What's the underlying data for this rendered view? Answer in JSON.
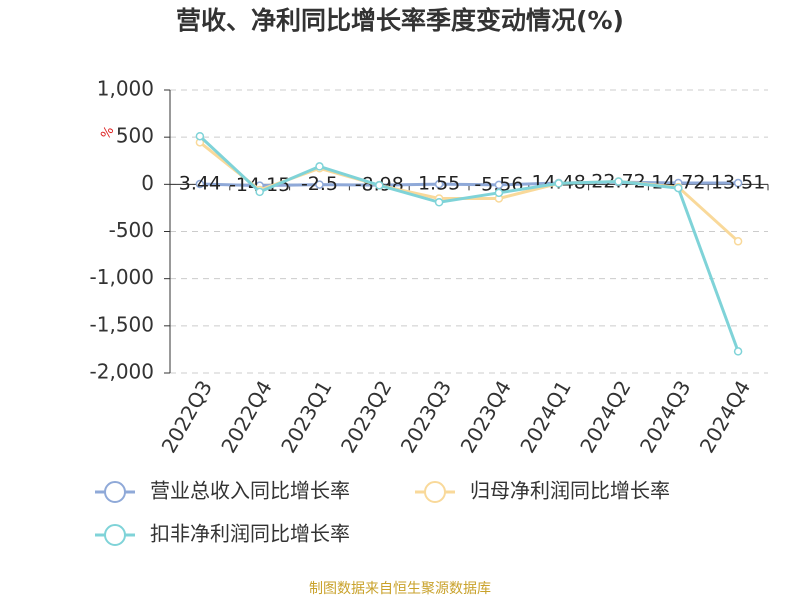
{
  "chart_data": {
    "type": "line",
    "title": "营收、净利同比增长率季度变动情况(%)",
    "y_label": "%",
    "source": "制图数据来自恒生聚源数据库",
    "categories": [
      "2022Q3",
      "2022Q4",
      "2023Q1",
      "2023Q2",
      "2023Q3",
      "2023Q4",
      "2024Q1",
      "2024Q2",
      "2024Q3",
      "2024Q4"
    ],
    "series": [
      {
        "name": "营业总收入同比增长率",
        "color": "#8fa9d8",
        "show_labels": true,
        "values": [
          3.44,
          -14.15,
          -2.5,
          -8.98,
          1.55,
          -5.56,
          14.48,
          22.72,
          14.72,
          13.51
        ]
      },
      {
        "name": "归母净利润同比增长率",
        "color": "#f9d99a",
        "values": [
          445,
          -60,
          170,
          -10,
          -150,
          -150,
          10,
          30,
          -30,
          -604
        ]
      },
      {
        "name": "扣非净利润同比增长率",
        "color": "#7fd3d8",
        "values": [
          510,
          -80,
          190,
          -10,
          -190,
          -90,
          10,
          30,
          -40,
          -1771
        ]
      }
    ],
    "ylim": [
      -2000,
      1000
    ],
    "yticks": [
      {
        "value": 1000,
        "label": "1,000"
      },
      500,
      0,
      -500,
      {
        "value": -1000,
        "label": "-1,000"
      },
      {
        "value": -1500,
        "label": "-1,500"
      },
      {
        "value": -2000,
        "label": "-2,000"
      }
    ],
    "grid": true
  }
}
